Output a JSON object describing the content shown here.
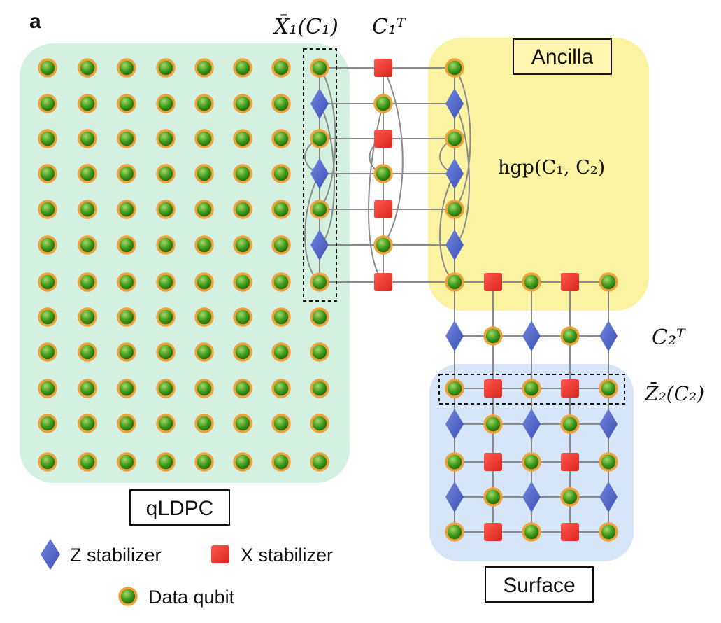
{
  "panel_label": "a",
  "regions": {
    "qldpc": {
      "label": "qLDPC",
      "color": "#d3efe0"
    },
    "ancilla": {
      "label": "Ancilla",
      "color": "#f9f3a0"
    },
    "surface": {
      "label": "Surface",
      "color": "#d6e4f8"
    }
  },
  "annotations": {
    "x1": "X̄₁(C₁)",
    "c1t": "C₁ᵀ",
    "hgp": "hgp(C₁, C₂)",
    "c2t": "C₂ᵀ",
    "z2": "Z̄₂(C₂)"
  },
  "legend": {
    "z_stabilizer": "Z stabilizer",
    "x_stabilizer": "X stabilizer",
    "data_qubit": "Data qubit"
  },
  "colors": {
    "qubit_fill": "#3d8f1a",
    "qubit_ring": "#f0a23a",
    "z_stab": "#4d63c8",
    "x_stab": "#e8332b",
    "edge": "#8a8a8a"
  },
  "grid": {
    "qldpc_rows": 12,
    "qldpc_cols": 8
  }
}
